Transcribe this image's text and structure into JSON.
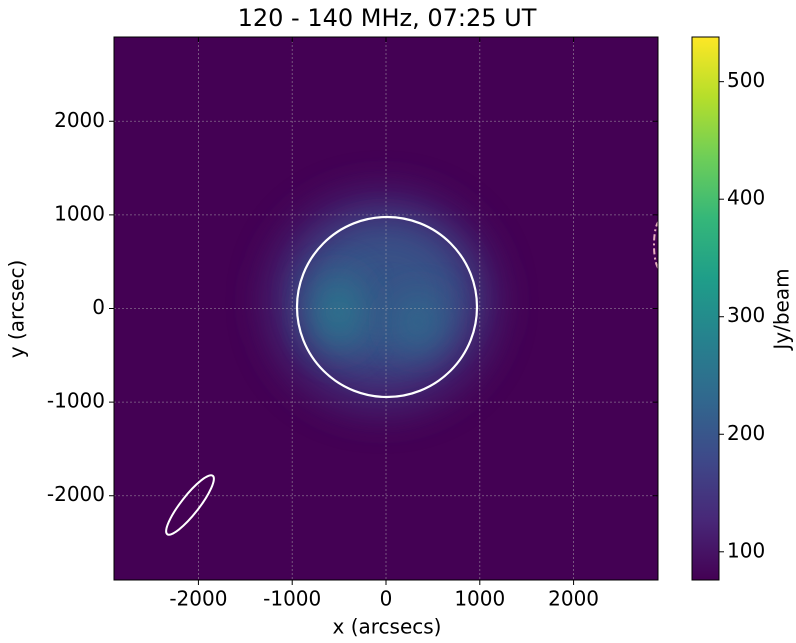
{
  "chart_data": {
    "type": "image",
    "title": "120 - 140 MHz, 07:25 UT",
    "x_label": "x (arcsecs)",
    "y_label": "y (arcsec)",
    "xlim": [
      -2900,
      2900
    ],
    "ylim": [
      -2900,
      2900
    ],
    "xticks": [
      -2000,
      -1000,
      0,
      1000,
      2000
    ],
    "yticks": [
      -2000,
      -1000,
      0,
      1000,
      2000
    ],
    "grid": true,
    "colorbar": {
      "label": "Jy/beam",
      "lim": [
        76,
        538
      ],
      "ticks": [
        100,
        200,
        300,
        400,
        500
      ],
      "colors": [
        "#440154",
        "#482878",
        "#3e4989",
        "#31688e",
        "#26828e",
        "#1f9e89",
        "#35b779",
        "#6ece58",
        "#b5de2b",
        "#fde725"
      ]
    }
  }
}
